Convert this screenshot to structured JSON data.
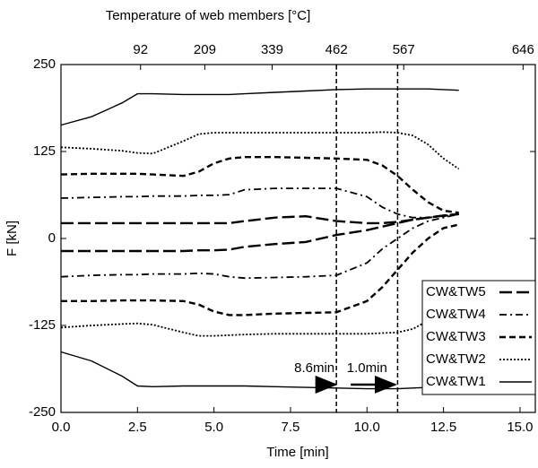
{
  "chart_data": {
    "type": "line",
    "title": "Temperature of web members [°C]",
    "xlabel": "Time [min]",
    "ylabel": "F [kN]",
    "x": [
      0,
      1,
      2,
      2.5,
      3,
      4,
      4.5,
      5,
      5.5,
      6,
      7,
      8,
      9,
      10,
      10.5,
      11,
      11.5,
      12,
      12.5,
      13
    ],
    "series": [
      {
        "name": "CW&TW5",
        "color": "#000000",
        "dash": "14,5",
        "width": 2.4,
        "upper": [
          22,
          22,
          22,
          22,
          22,
          22,
          22,
          22,
          22,
          25,
          30,
          32,
          25,
          22,
          22,
          24,
          27,
          30,
          33,
          35
        ],
        "lower": [
          -18,
          -18,
          -18,
          -18,
          -18,
          -18,
          -17,
          -17,
          -16,
          -12,
          -8,
          -5,
          5,
          12,
          17,
          22,
          27,
          30,
          33,
          35
        ]
      },
      {
        "name": "CW&TW4",
        "color": "#000000",
        "dash": "8,4,2,4",
        "width": 1.8,
        "upper": [
          58,
          59,
          60,
          60,
          61,
          61,
          62,
          62,
          63,
          70,
          72,
          72,
          72,
          60,
          45,
          35,
          30,
          30,
          32,
          35
        ],
        "lower": [
          -55,
          -53,
          -52,
          -52,
          -51,
          -51,
          -50,
          -51,
          -55,
          -57,
          -56,
          -55,
          -53,
          -35,
          -15,
          0,
          15,
          25,
          30,
          35
        ]
      },
      {
        "name": "CW&TW3",
        "color": "#000000",
        "dash": "7,4",
        "width": 2.4,
        "upper": [
          92,
          93,
          93,
          93,
          92,
          90,
          96,
          108,
          115,
          117,
          117,
          116,
          115,
          113,
          105,
          90,
          70,
          52,
          40,
          37
        ],
        "lower": [
          -90,
          -90,
          -89,
          -89,
          -89,
          -90,
          -95,
          -105,
          -110,
          -110,
          -108,
          -107,
          -106,
          -90,
          -70,
          -45,
          -20,
          0,
          15,
          20
        ]
      },
      {
        "name": "CW&TW2",
        "color": "#000000",
        "dash": "2,2",
        "width": 1.8,
        "upper": [
          131,
          129,
          126,
          123,
          122,
          140,
          150,
          152,
          152,
          152,
          152,
          152,
          152,
          152,
          153,
          152,
          148,
          135,
          115,
          100
        ],
        "lower": [
          -128,
          -125,
          -123,
          -122,
          -124,
          -135,
          -140,
          -140,
          -139,
          -138,
          -137,
          -137,
          -137,
          -137,
          -136,
          -135,
          -130,
          -118,
          -105,
          -100
        ]
      },
      {
        "name": "CW&TW1",
        "color": "#000000",
        "dash": "none",
        "width": 1.4,
        "upper": [
          163,
          175,
          195,
          208,
          208,
          207,
          207,
          207,
          207,
          208,
          210,
          212,
          214,
          215,
          215,
          215,
          215,
          215,
          214,
          213
        ],
        "lower": [
          -163,
          -176,
          -198,
          -212,
          -213,
          -212,
          -212,
          -212,
          -212,
          -212,
          -213,
          -214,
          -215,
          -216,
          -216,
          -216,
          -215,
          -214,
          -213,
          -213
        ]
      }
    ],
    "xlim": [
      0,
      15.5
    ],
    "xticks": [
      {
        "value": 0,
        "label": "0.0"
      },
      2.5,
      {
        "value": 5,
        "label": "5.0"
      },
      7.5,
      {
        "value": 10,
        "label": "10.0"
      },
      12.5,
      {
        "value": 15,
        "label": "15.0"
      }
    ],
    "x2ticks": [
      {
        "value": 2.6,
        "label": "92"
      },
      {
        "value": 4.7,
        "label": "209"
      },
      {
        "value": 6.9,
        "label": "339"
      },
      {
        "value": 9.0,
        "label": "462"
      },
      {
        "value": 11.2,
        "label": "567"
      },
      {
        "value": 15.1,
        "label": "646"
      }
    ],
    "ylim": [
      -250,
      250
    ],
    "yticks": [
      -250,
      -125,
      0,
      125,
      250
    ],
    "vlines": [
      9.0,
      11.0
    ],
    "annotations": [
      "8.6min",
      "1.0min"
    ],
    "legend": "lower right"
  }
}
